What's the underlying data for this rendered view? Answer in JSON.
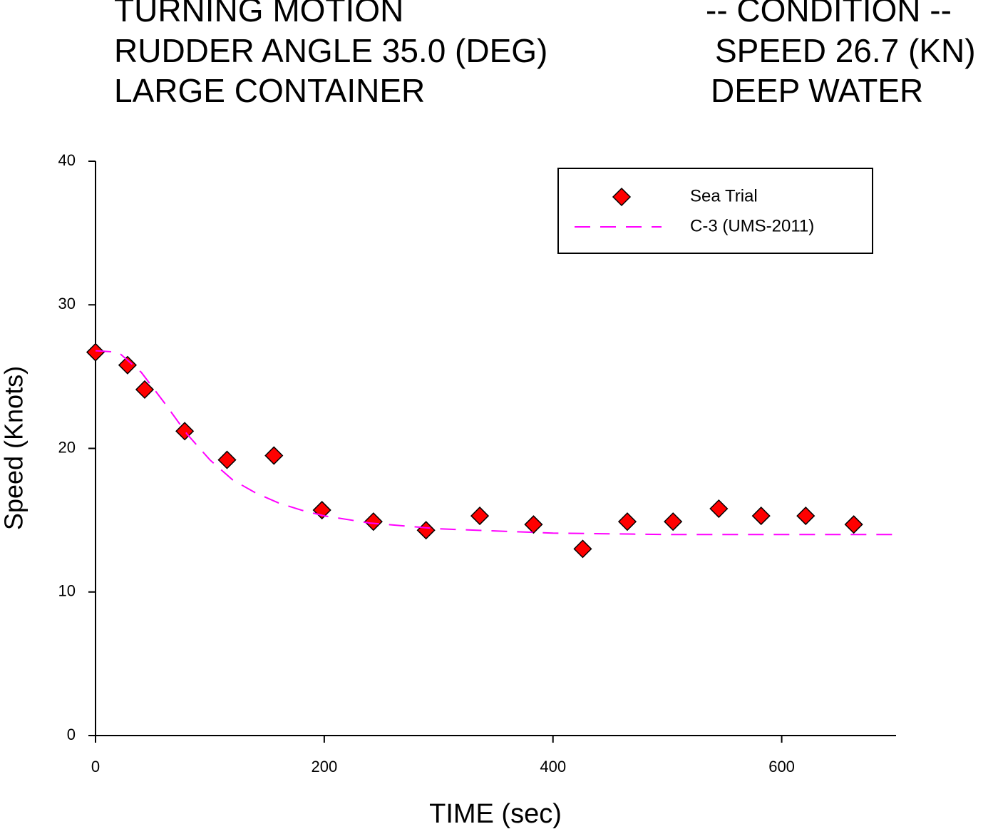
{
  "chart_data": {
    "type": "scatter-line",
    "header": {
      "left": [
        "TURNING MOTION",
        "RUDDER ANGLE  35.0 (DEG)",
        "LARGE CONTAINER"
      ],
      "right": [
        "-- CONDITION --",
        "SPEED 26.7 (KN)",
        "DEEP WATER"
      ]
    },
    "x_label": "TIME (sec)",
    "y_label": "Speed (Knots)",
    "xlim": [
      0,
      700
    ],
    "xticks": [
      0,
      200,
      400,
      600
    ],
    "ylim": [
      0,
      40
    ],
    "yticks": [
      0,
      10,
      20,
      30,
      40
    ],
    "legend": "upper right",
    "series": [
      {
        "name": "Sea Trial",
        "kind": "scatter",
        "color": "#ff0000",
        "x": [
          0,
          28,
          43,
          78,
          115,
          156,
          198,
          243,
          289,
          336,
          383,
          426,
          465,
          505,
          545,
          582,
          621,
          663
        ],
        "values": [
          26.7,
          25.8,
          24.1,
          21.2,
          19.2,
          19.5,
          15.7,
          14.9,
          14.3,
          15.3,
          14.7,
          13.0,
          14.9,
          14.9,
          15.8,
          15.3,
          15.3,
          14.7
        ]
      },
      {
        "name": "C-3 (UMS-2011)",
        "kind": "line",
        "color": "#ff00ff",
        "x": [
          0,
          20,
          40,
          60,
          80,
          100,
          120,
          140,
          160,
          180,
          200,
          240,
          300,
          400,
          500,
          600,
          700
        ],
        "values": [
          26.8,
          26.7,
          25.3,
          23.2,
          21.0,
          19.2,
          17.8,
          16.9,
          16.2,
          15.7,
          15.3,
          14.8,
          14.4,
          14.1,
          14.0,
          14.0,
          14.0
        ]
      }
    ]
  }
}
